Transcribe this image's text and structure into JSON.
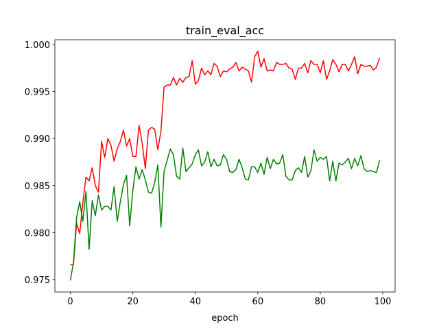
{
  "chart_data": {
    "type": "line",
    "title": "train_eval_acc",
    "x_label": "epoch",
    "x": [
      0,
      1,
      2,
      3,
      4,
      5,
      6,
      7,
      8,
      9,
      10,
      11,
      12,
      13,
      14,
      15,
      16,
      17,
      18,
      19,
      20,
      21,
      22,
      23,
      24,
      25,
      26,
      27,
      28,
      29,
      30,
      31,
      32,
      33,
      34,
      35,
      36,
      37,
      38,
      39,
      40,
      41,
      42,
      43,
      44,
      45,
      46,
      47,
      48,
      49,
      50,
      51,
      52,
      53,
      54,
      55,
      56,
      57,
      58,
      59,
      60,
      61,
      62,
      63,
      64,
      65,
      66,
      67,
      68,
      69,
      70,
      71,
      72,
      73,
      74,
      75,
      76,
      77,
      78,
      79,
      80,
      81,
      82,
      83,
      84,
      85,
      86,
      87,
      88,
      89,
      90,
      91,
      92,
      93,
      94,
      95,
      96,
      97,
      98,
      99
    ],
    "series": [
      {
        "color": "#ff0000",
        "values": [
          0.9766,
          0.9766,
          0.981,
          0.9799,
          0.9832,
          0.9859,
          0.9855,
          0.9869,
          0.985,
          0.9843,
          0.9897,
          0.988,
          0.99,
          0.9893,
          0.9876,
          0.9889,
          0.9897,
          0.9909,
          0.9892,
          0.99,
          0.9881,
          0.9881,
          0.9914,
          0.9895,
          0.9868,
          0.9909,
          0.9912,
          0.991,
          0.9888,
          0.9908,
          0.9955,
          0.9957,
          0.9957,
          0.9965,
          0.9957,
          0.9964,
          0.996,
          0.9965,
          0.9966,
          0.9983,
          0.9958,
          0.9962,
          0.9975,
          0.9968,
          0.9972,
          0.9968,
          0.998,
          0.9977,
          0.9966,
          0.9972,
          0.9971,
          0.9974,
          0.9976,
          0.9981,
          0.9972,
          0.9976,
          0.9974,
          0.9972,
          0.996,
          0.9987,
          0.9993,
          0.9976,
          0.9985,
          0.9972,
          0.9973,
          0.9972,
          0.9981,
          0.9979,
          0.9979,
          0.998,
          0.9975,
          0.9974,
          0.9963,
          0.9975,
          0.9975,
          0.998,
          0.997,
          0.9983,
          0.9979,
          0.9979,
          0.997,
          0.9983,
          0.9963,
          0.9972,
          0.9984,
          0.9979,
          0.9971,
          0.9979,
          0.9979,
          0.9972,
          0.9979,
          0.9987,
          0.9969,
          0.9979,
          0.9977,
          0.9977,
          0.9978,
          0.9973,
          0.9976,
          0.9986
        ]
      },
      {
        "color": "#008000",
        "values": [
          0.9749,
          0.9768,
          0.9816,
          0.9833,
          0.9812,
          0.9844,
          0.9782,
          0.9834,
          0.9818,
          0.984,
          0.9824,
          0.9828,
          0.9828,
          0.9824,
          0.9849,
          0.9812,
          0.9833,
          0.9851,
          0.9861,
          0.9807,
          0.9845,
          0.987,
          0.9857,
          0.9867,
          0.9856,
          0.9843,
          0.9842,
          0.9853,
          0.9872,
          0.9806,
          0.9865,
          0.9877,
          0.9889,
          0.9883,
          0.986,
          0.9857,
          0.989,
          0.9865,
          0.9869,
          0.9873,
          0.9883,
          0.9888,
          0.9871,
          0.9875,
          0.9886,
          0.987,
          0.9878,
          0.9871,
          0.9872,
          0.9883,
          0.9878,
          0.9865,
          0.9864,
          0.9867,
          0.9878,
          0.9869,
          0.9857,
          0.9856,
          0.987,
          0.987,
          0.9864,
          0.9874,
          0.9862,
          0.988,
          0.9868,
          0.9878,
          0.9873,
          0.9874,
          0.9883,
          0.986,
          0.9856,
          0.9856,
          0.9866,
          0.9869,
          0.9864,
          0.9881,
          0.9859,
          0.9866,
          0.9888,
          0.9876,
          0.988,
          0.9878,
          0.9881,
          0.9855,
          0.9876,
          0.9855,
          0.9874,
          0.9872,
          0.9875,
          0.9879,
          0.9868,
          0.9879,
          0.9871,
          0.9882,
          0.9868,
          0.9865,
          0.9866,
          0.9865,
          0.9864,
          0.9877
        ]
      }
    ],
    "xlim": [
      -4.95,
      103.95
    ],
    "xticks": [
      0,
      20,
      40,
      60,
      80,
      100
    ],
    "ylim": [
      0.97368,
      1.00052
    ],
    "yticks": [
      {
        "value": 0.975,
        "label": "0.975"
      },
      {
        "value": 0.98,
        "label": "0.980"
      },
      {
        "value": 0.985,
        "label": "0.985"
      },
      {
        "value": 0.99,
        "label": "0.990"
      },
      {
        "value": 0.995,
        "label": "0.995"
      },
      {
        "value": 1.0,
        "label": "1.000"
      }
    ],
    "grid": false
  }
}
